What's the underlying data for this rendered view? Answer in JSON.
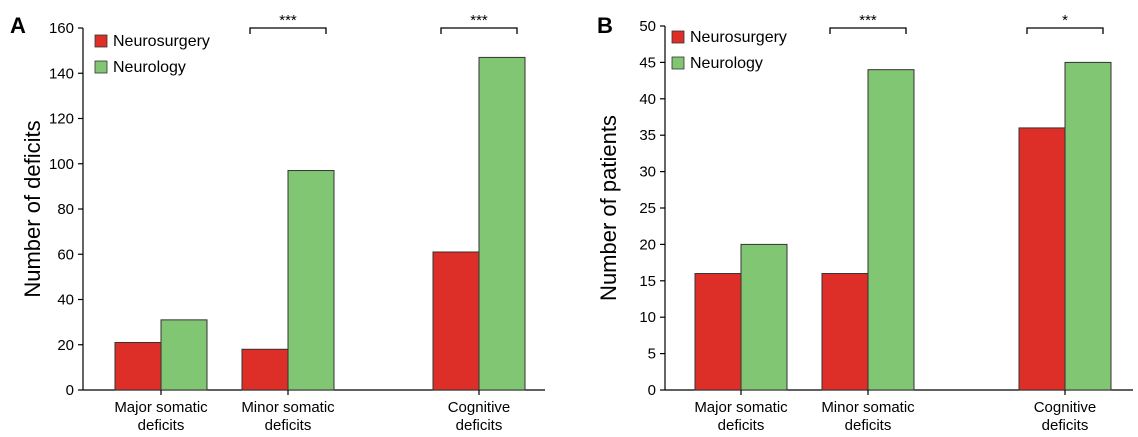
{
  "panels": [
    "A",
    "B"
  ],
  "colors": {
    "neurosurgery": "#dd2f28",
    "neurology": "#80c673",
    "bar_stroke": "#333333"
  },
  "chart_data": [
    {
      "type": "bar",
      "panel": "A",
      "ylabel": "Number of deficits",
      "ylim": [
        0,
        160
      ],
      "yticks": [
        0,
        20,
        40,
        60,
        80,
        100,
        120,
        140,
        160
      ],
      "categories": [
        {
          "lines": [
            "Major somatic",
            "deficits"
          ]
        },
        {
          "lines": [
            "Minor somatic",
            "deficits"
          ]
        },
        {
          "lines": [
            "Cognitive",
            "deficits"
          ]
        }
      ],
      "series": [
        {
          "name": "Neurosurgery",
          "values": [
            21,
            18,
            61
          ]
        },
        {
          "name": "Neurology",
          "values": [
            31,
            97,
            147
          ]
        }
      ],
      "legend": "top-left",
      "significance": [
        {
          "category": 1,
          "label": "***"
        },
        {
          "category": 2,
          "label": "***"
        }
      ],
      "grid": false
    },
    {
      "type": "bar",
      "panel": "B",
      "ylabel": "Number of patients",
      "ylim": [
        0,
        50
      ],
      "yticks": [
        0,
        5,
        10,
        15,
        20,
        25,
        30,
        35,
        40,
        45,
        50
      ],
      "categories": [
        {
          "lines": [
            "Major somatic",
            "deficits"
          ]
        },
        {
          "lines": [
            "Minor somatic",
            "deficits"
          ]
        },
        {
          "lines": [
            "Cognitive",
            "deficits"
          ]
        }
      ],
      "series": [
        {
          "name": "Neurosurgery",
          "values": [
            16,
            16,
            36
          ]
        },
        {
          "name": "Neurology",
          "values": [
            20,
            44,
            45
          ]
        }
      ],
      "legend": "top-left",
      "significance": [
        {
          "category": 1,
          "label": "***"
        },
        {
          "category": 2,
          "label": "*"
        }
      ],
      "grid": false
    }
  ]
}
